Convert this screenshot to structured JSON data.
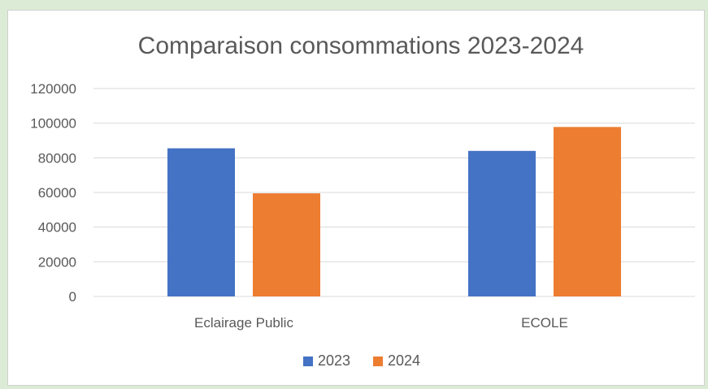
{
  "chart_data": {
    "type": "bar",
    "title": "Comparaison consommations 2023-2024",
    "categories": [
      "Eclairage Public",
      "ECOLE"
    ],
    "series": [
      {
        "name": "2023",
        "color": "#4472c4",
        "values": [
          85500,
          84000
        ]
      },
      {
        "name": "2024",
        "color": "#ed7d31",
        "values": [
          59500,
          97800
        ]
      }
    ],
    "ylim": [
      0,
      120000
    ],
    "yticks": [
      "0",
      "20000",
      "40000",
      "60000",
      "80000",
      "100000",
      "120000"
    ],
    "grid": true,
    "legend_position": "bottom"
  }
}
